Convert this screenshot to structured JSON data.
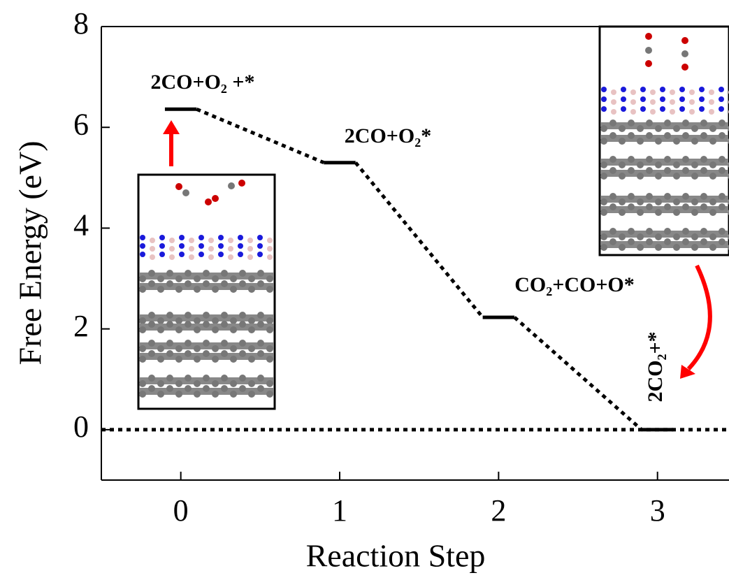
{
  "chart_data": {
    "type": "levels",
    "x_label": "Reaction Step",
    "y_label": "Free Energy (eV)",
    "x": [
      0,
      1,
      2,
      3
    ],
    "values": [
      6.36,
      5.3,
      2.23,
      0
    ],
    "level_labels": [
      "2CO+O₂ +*",
      "2CO+O₂*",
      "CO₂+CO+O*",
      "2CO₂+*"
    ],
    "hline": 0,
    "xlim": [
      -0.5,
      3.45
    ],
    "ylim": [
      -1,
      8
    ],
    "xticks": [
      0,
      1,
      2,
      3
    ],
    "yticks": [
      0,
      2,
      4,
      6,
      8
    ],
    "color": "#000000"
  }
}
